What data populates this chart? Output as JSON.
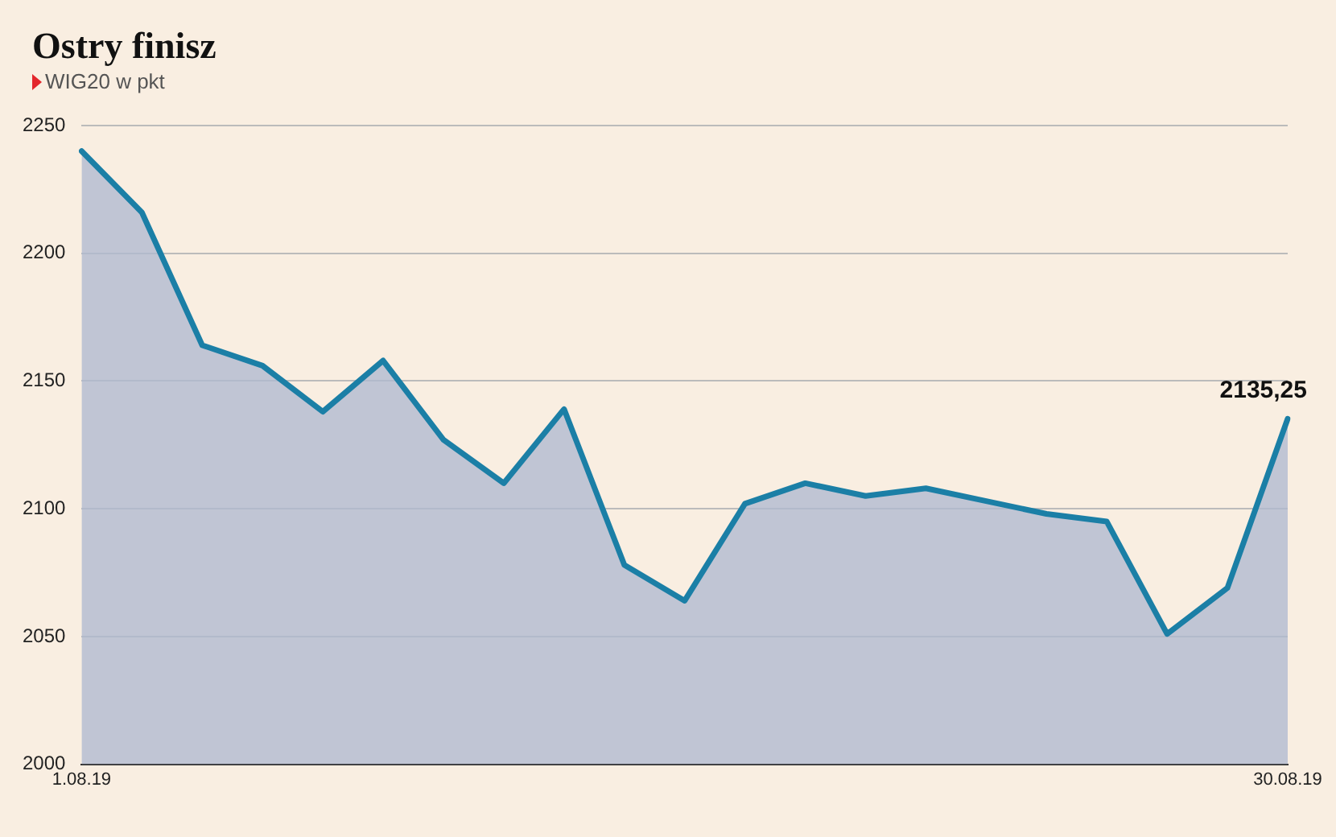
{
  "chart_data": {
    "type": "area",
    "title": "Ostry finisz",
    "subtitle": "WIG20 w pkt",
    "categories": [
      "1.08.19",
      null,
      null,
      null,
      null,
      null,
      null,
      null,
      null,
      null,
      null,
      null,
      null,
      null,
      null,
      null,
      null,
      null,
      null,
      null,
      "30.08.19"
    ],
    "series": [
      {
        "color": "#1b7fa6",
        "values": [
          2240,
          2216,
          2164,
          2156,
          2138,
          2158,
          2127,
          2110,
          2139,
          2078,
          2064,
          2102,
          2110,
          2105,
          2108,
          2103,
          2098,
          2095,
          2051,
          2069,
          2135.25
        ]
      }
    ],
    "ylim": [
      2000,
      2250
    ],
    "yticks": [
      2000,
      2050,
      2100,
      2150,
      2200,
      2250
    ],
    "grid": "y",
    "legend": false,
    "marker": "none",
    "line_style": "solid",
    "annotations": [
      {
        "text": "2135,25",
        "x": "30.08.19",
        "y": 2135.25
      }
    ]
  }
}
